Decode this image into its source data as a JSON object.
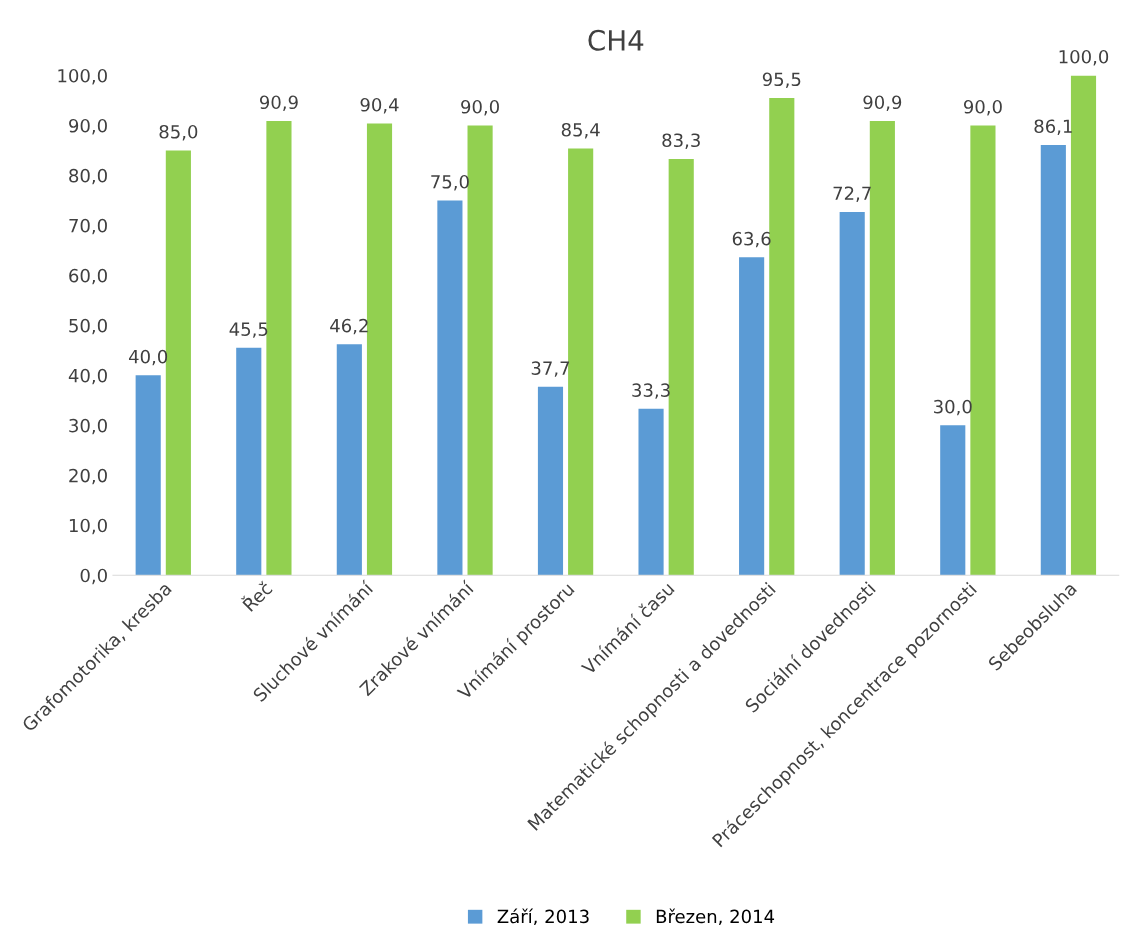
{
  "chart_data": {
    "type": "bar",
    "title": "CH4",
    "categories": [
      "Grafomotorika, kresba",
      "Řeč",
      "Sluchové vnímání",
      "Zrakové vnímání",
      "Vnímání prostoru",
      "Vnímání času",
      "Matematické schopnosti a dovednosti",
      "Sociální dovednosti",
      "Práceschopnost, koncentrace pozornosti",
      "Sebeobsluha"
    ],
    "series": [
      {
        "name": "Září, 2013",
        "color": "#5b9bd5",
        "values": [
          40.0,
          45.5,
          46.2,
          75.0,
          37.7,
          33.3,
          63.6,
          72.7,
          30.0,
          86.1
        ],
        "value_labels": [
          "40,0",
          "45,5",
          "46,2",
          "75,0",
          "37,7",
          "33,3",
          "63,6",
          "72,7",
          "30,0",
          "86,1"
        ]
      },
      {
        "name": "Březen, 2014",
        "color": "#92d050",
        "values": [
          85.0,
          90.9,
          90.4,
          90.0,
          85.4,
          83.3,
          95.5,
          90.9,
          90.0,
          100.0
        ],
        "value_labels": [
          "85,0",
          "90,9",
          "90,4",
          "90,0",
          "85,4",
          "83,3",
          "95,5",
          "90,9",
          "90,0",
          "100,0"
        ]
      }
    ],
    "ylim": [
      0,
      100
    ],
    "yticks": [
      {
        "value": 0,
        "label": "0,0"
      },
      {
        "value": 10,
        "label": "10,0"
      },
      {
        "value": 20,
        "label": "20,0"
      },
      {
        "value": 30,
        "label": "30,0"
      },
      {
        "value": 40,
        "label": "40,0"
      },
      {
        "value": 50,
        "label": "50,0"
      },
      {
        "value": 60,
        "label": "60,0"
      },
      {
        "value": 70,
        "label": "70,0"
      },
      {
        "value": 80,
        "label": "80,0"
      },
      {
        "value": 90,
        "label": "90,0"
      },
      {
        "value": 100,
        "label": "100,0"
      }
    ],
    "grid": false,
    "legend": "bottom"
  }
}
